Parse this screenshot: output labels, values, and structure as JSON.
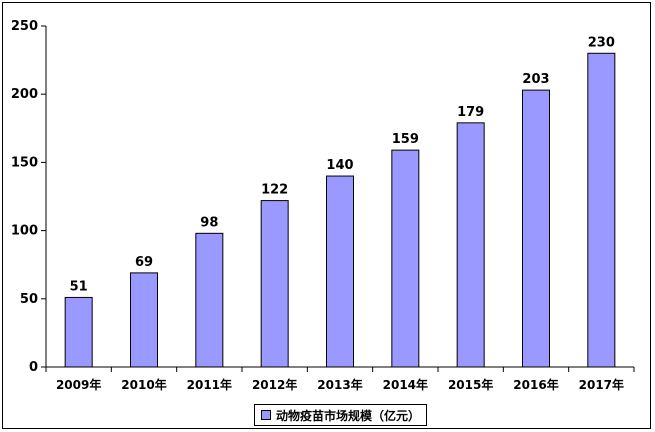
{
  "chart_data": {
    "type": "bar",
    "categories": [
      "2009年",
      "2010年",
      "2011年",
      "2012年",
      "2013年",
      "2014年",
      "2015年",
      "2016年",
      "2017年"
    ],
    "series": [
      {
        "name": "动物疫苗市场规模（亿元）",
        "values": [
          51,
          69,
          98,
          122,
          140,
          159,
          179,
          203,
          230
        ],
        "color": "#9999ff"
      }
    ],
    "ylim": [
      0,
      250
    ],
    "yticks": [
      0,
      50,
      100,
      150,
      200,
      250
    ],
    "grid": false,
    "legend_position": "bottom",
    "data_labels": true
  }
}
